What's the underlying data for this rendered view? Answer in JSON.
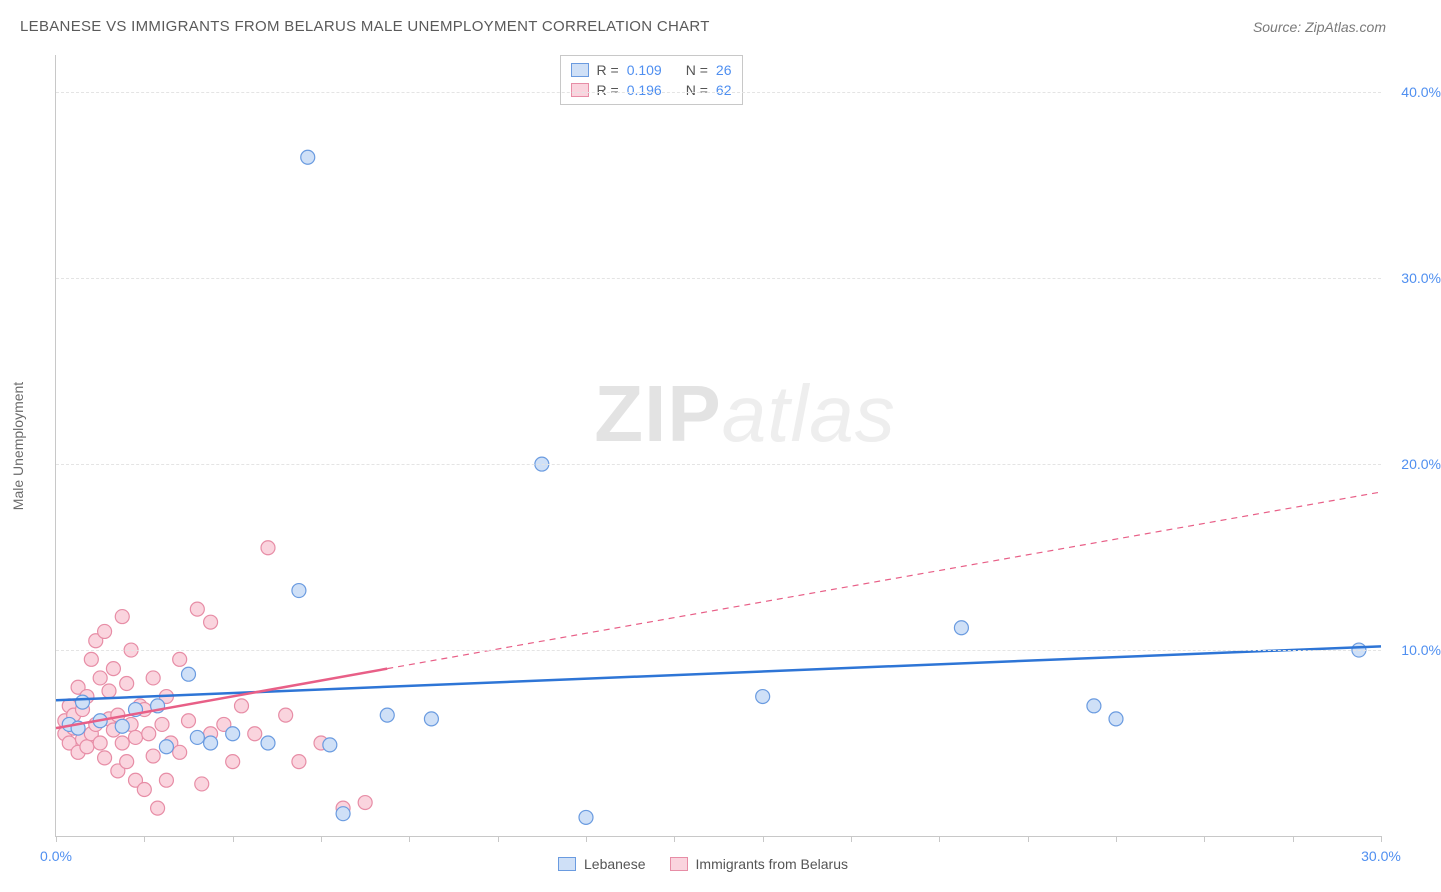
{
  "title": "LEBANESE VS IMMIGRANTS FROM BELARUS MALE UNEMPLOYMENT CORRELATION CHART",
  "source_prefix": "Source: ",
  "source": "ZipAtlas.com",
  "ylabel": "Male Unemployment",
  "watermark_a": "ZIP",
  "watermark_b": "atlas",
  "chart": {
    "type": "scatter",
    "xlim": [
      0,
      30
    ],
    "ylim": [
      0,
      42
    ],
    "ytick_values": [
      10,
      20,
      30,
      40
    ],
    "ytick_labels": [
      "10.0%",
      "20.0%",
      "30.0%",
      "40.0%"
    ],
    "xtick_values": [
      0,
      2,
      4,
      6,
      8,
      10,
      12,
      14,
      16,
      18,
      20,
      22,
      24,
      26,
      28,
      30
    ],
    "xtick_labels": {
      "0": "0.0%",
      "30": "30.0%"
    },
    "background_color": "#ffffff",
    "grid_color": "#e4e4e4",
    "axis_color": "#c8c8c8",
    "marker_radius": 7,
    "marker_stroke_width": 1.2,
    "trend_line_width": 2.5,
    "series": {
      "blue": {
        "label": "Lebanese",
        "fill": "#cfe0f7",
        "stroke": "#6a9be0",
        "line_stroke": "#2e75d6",
        "r_label": "R = ",
        "r_value": "0.109",
        "n_label": "N = ",
        "n_value": "26",
        "trend_solid": {
          "x1": 0,
          "y1": 7.3,
          "x2": 30,
          "y2": 10.2
        },
        "points": [
          [
            0.3,
            6.0
          ],
          [
            0.5,
            5.8
          ],
          [
            0.6,
            7.2
          ],
          [
            1.0,
            6.2
          ],
          [
            1.5,
            5.9
          ],
          [
            1.8,
            6.8
          ],
          [
            2.3,
            7.0
          ],
          [
            2.5,
            4.8
          ],
          [
            3.0,
            8.7
          ],
          [
            3.2,
            5.3
          ],
          [
            3.5,
            5.0
          ],
          [
            4.0,
            5.5
          ],
          [
            4.8,
            5.0
          ],
          [
            5.5,
            13.2
          ],
          [
            5.7,
            36.5
          ],
          [
            6.2,
            4.9
          ],
          [
            6.5,
            1.2
          ],
          [
            7.5,
            6.5
          ],
          [
            8.5,
            6.3
          ],
          [
            11.0,
            20.0
          ],
          [
            12.0,
            1.0
          ],
          [
            16.0,
            7.5
          ],
          [
            20.5,
            11.2
          ],
          [
            23.5,
            7.0
          ],
          [
            24.0,
            6.3
          ],
          [
            29.5,
            10.0
          ]
        ]
      },
      "pink": {
        "label": "Immigrants from Belarus",
        "fill": "#fad4de",
        "stroke": "#e78da6",
        "line_stroke": "#e85f87",
        "r_label": "R = ",
        "r_value": "0.196",
        "n_label": "N = ",
        "n_value": "62",
        "trend_solid": {
          "x1": 0,
          "y1": 5.8,
          "x2": 7.5,
          "y2": 9.0
        },
        "trend_dashed": {
          "x1": 7.5,
          "y1": 9.0,
          "x2": 30,
          "y2": 18.5
        },
        "points": [
          [
            0.2,
            5.5
          ],
          [
            0.2,
            6.2
          ],
          [
            0.3,
            5.0
          ],
          [
            0.3,
            7.0
          ],
          [
            0.4,
            5.8
          ],
          [
            0.4,
            6.5
          ],
          [
            0.5,
            4.5
          ],
          [
            0.5,
            8.0
          ],
          [
            0.6,
            5.2
          ],
          [
            0.6,
            6.8
          ],
          [
            0.7,
            4.8
          ],
          [
            0.7,
            7.5
          ],
          [
            0.8,
            5.5
          ],
          [
            0.8,
            9.5
          ],
          [
            0.9,
            6.0
          ],
          [
            0.9,
            10.5
          ],
          [
            1.0,
            5.0
          ],
          [
            1.0,
            8.5
          ],
          [
            1.1,
            4.2
          ],
          [
            1.1,
            11.0
          ],
          [
            1.2,
            6.3
          ],
          [
            1.2,
            7.8
          ],
          [
            1.3,
            5.7
          ],
          [
            1.3,
            9.0
          ],
          [
            1.4,
            3.5
          ],
          [
            1.4,
            6.5
          ],
          [
            1.5,
            5.0
          ],
          [
            1.5,
            11.8
          ],
          [
            1.6,
            4.0
          ],
          [
            1.6,
            8.2
          ],
          [
            1.7,
            6.0
          ],
          [
            1.7,
            10.0
          ],
          [
            1.8,
            5.3
          ],
          [
            1.8,
            3.0
          ],
          [
            1.9,
            7.0
          ],
          [
            2.0,
            2.5
          ],
          [
            2.0,
            6.8
          ],
          [
            2.1,
            5.5
          ],
          [
            2.2,
            4.3
          ],
          [
            2.2,
            8.5
          ],
          [
            2.3,
            1.5
          ],
          [
            2.4,
            6.0
          ],
          [
            2.5,
            7.5
          ],
          [
            2.5,
            3.0
          ],
          [
            2.6,
            5.0
          ],
          [
            2.8,
            4.5
          ],
          [
            2.8,
            9.5
          ],
          [
            3.0,
            6.2
          ],
          [
            3.2,
            12.2
          ],
          [
            3.3,
            2.8
          ],
          [
            3.5,
            11.5
          ],
          [
            3.5,
            5.5
          ],
          [
            3.8,
            6.0
          ],
          [
            4.0,
            4.0
          ],
          [
            4.2,
            7.0
          ],
          [
            4.5,
            5.5
          ],
          [
            4.8,
            15.5
          ],
          [
            5.2,
            6.5
          ],
          [
            5.5,
            4.0
          ],
          [
            6.0,
            5.0
          ],
          [
            6.5,
            1.5
          ],
          [
            7.0,
            1.8
          ]
        ]
      }
    }
  }
}
